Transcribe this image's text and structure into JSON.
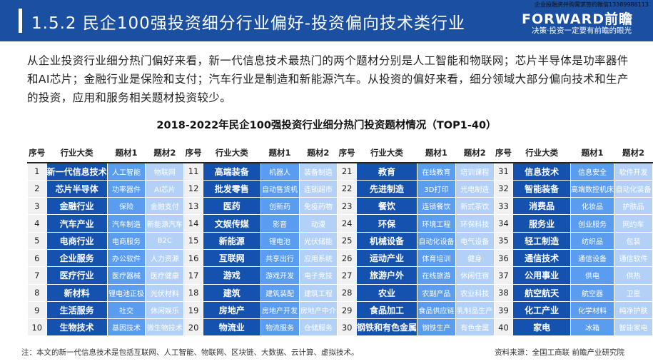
{
  "header": {
    "title": "1.5.2 民企100强投资细分行业偏好-投资偏向技术类行业",
    "contact": "企业投融资并购需求签约微信13389986113",
    "logo": "FORWARD前瞻",
    "slogan": "决策·投资一定要有前瞻的眼光"
  },
  "paragraph": "从企业投资行业细分热门偏好来看，新一代信息技术最热门的两个题材分别是人工智能和物联网；芯片半导体是功率器件和AI芯片；金融行业是保险和支付；汽车行业是制造和新能源汽车。从投资的偏好来看，细分领域大部分偏向技术和生产的投资，应用和服务相关题材投资较少。",
  "table": {
    "title": "2018-2022年民企100强投资行业细分热门投资题材情况（TOP1-40）",
    "headers": [
      "序号",
      "行业大类",
      "题材1",
      "题材2"
    ],
    "rows": [
      [
        "1",
        "新一代信息技术",
        "人工智能",
        "物联网"
      ],
      [
        "2",
        "芯片半导体",
        "功率器件",
        "AI芯片"
      ],
      [
        "3",
        "金融行业",
        "保险",
        "金融支付"
      ],
      [
        "4",
        "汽车产业",
        "汽车制造",
        "新能源汽车"
      ],
      [
        "5",
        "电商行业",
        "电商服务",
        "B2C"
      ],
      [
        "6",
        "企业服务",
        "办公软件",
        "人力资源"
      ],
      [
        "7",
        "医疗行业",
        "医疗器械",
        "医疗健康"
      ],
      [
        "8",
        "新材料",
        "锂电池正极",
        "光伏材料"
      ],
      [
        "9",
        "生活服务",
        "社交",
        "休闲娱乐"
      ],
      [
        "10",
        "生物技术",
        "基因技术",
        "微生物技术"
      ],
      [
        "11",
        "高端装备",
        "机器人",
        "装备制造"
      ],
      [
        "12",
        "批发零售",
        "自动售货机",
        "连锁超市"
      ],
      [
        "13",
        "医药",
        "创新药",
        "免疫药物"
      ],
      [
        "14",
        "文娱传媒",
        "影音",
        "动漫"
      ],
      [
        "15",
        "新能源",
        "锂电池",
        "光伏储能"
      ],
      [
        "16",
        "互联网",
        "共享出行",
        "应用系统"
      ],
      [
        "17",
        "游戏",
        "游戏开发",
        "电子竞技"
      ],
      [
        "18",
        "建筑",
        "建筑装配",
        "建筑工程"
      ],
      [
        "19",
        "房地产",
        "房地产开发",
        "房地产中介"
      ],
      [
        "20",
        "物流业",
        "物流服务",
        "仓储服务"
      ],
      [
        "21",
        "教育",
        "在线教育",
        "培训课程"
      ],
      [
        "22",
        "先进制造",
        "3D打印",
        "光电制造"
      ],
      [
        "23",
        "餐饮",
        "连锁餐饮",
        "新式茶饮"
      ],
      [
        "24",
        "环保",
        "环境工程",
        "环保科技"
      ],
      [
        "25",
        "机械设备",
        "自动化设备",
        "电气设备"
      ],
      [
        "26",
        "运动产业",
        "体育培训",
        "健身"
      ],
      [
        "27",
        "旅游户外",
        "在线旅游",
        "休闲住宿"
      ],
      [
        "28",
        "农业",
        "农副产品",
        "农业科技"
      ],
      [
        "29",
        "食品加工",
        "食品供应链",
        "乳制品生产"
      ],
      [
        "30",
        "钢铁和有色金属",
        "钢铁生产",
        "有色金属"
      ],
      [
        "31",
        "信息技术",
        "信息安全",
        "软件开发"
      ],
      [
        "32",
        "智能装备",
        "高端数控机床",
        "自动化装备"
      ],
      [
        "33",
        "消费品",
        "化妆品",
        "护肤品"
      ],
      [
        "34",
        "服务业",
        "创业服务",
        "网约车"
      ],
      [
        "35",
        "轻工制造",
        "纺织品",
        "包装"
      ],
      [
        "36",
        "通信技术",
        "通信设备",
        "通信软件"
      ],
      [
        "37",
        "公用事业",
        "供电",
        "供热"
      ],
      [
        "38",
        "航空航天",
        "航空器",
        "卫星"
      ],
      [
        "39",
        "化工产业",
        "化学材料",
        "纯净护肤"
      ],
      [
        "40",
        "家电",
        "冰箱",
        "智能家电"
      ]
    ]
  },
  "footer": {
    "note": "注：本文的新一代信息技术是包括互联网、人工智能、物联网、区块链、大数据、云计算、虚拟技术。",
    "source": "资料来源：全国工商联 前瞻产业研究院"
  },
  "colors": {
    "header": "#1a4fa2",
    "industry": "#1552b0",
    "topic1": "#5a9cf0",
    "topic2": "#b3d1f7"
  }
}
